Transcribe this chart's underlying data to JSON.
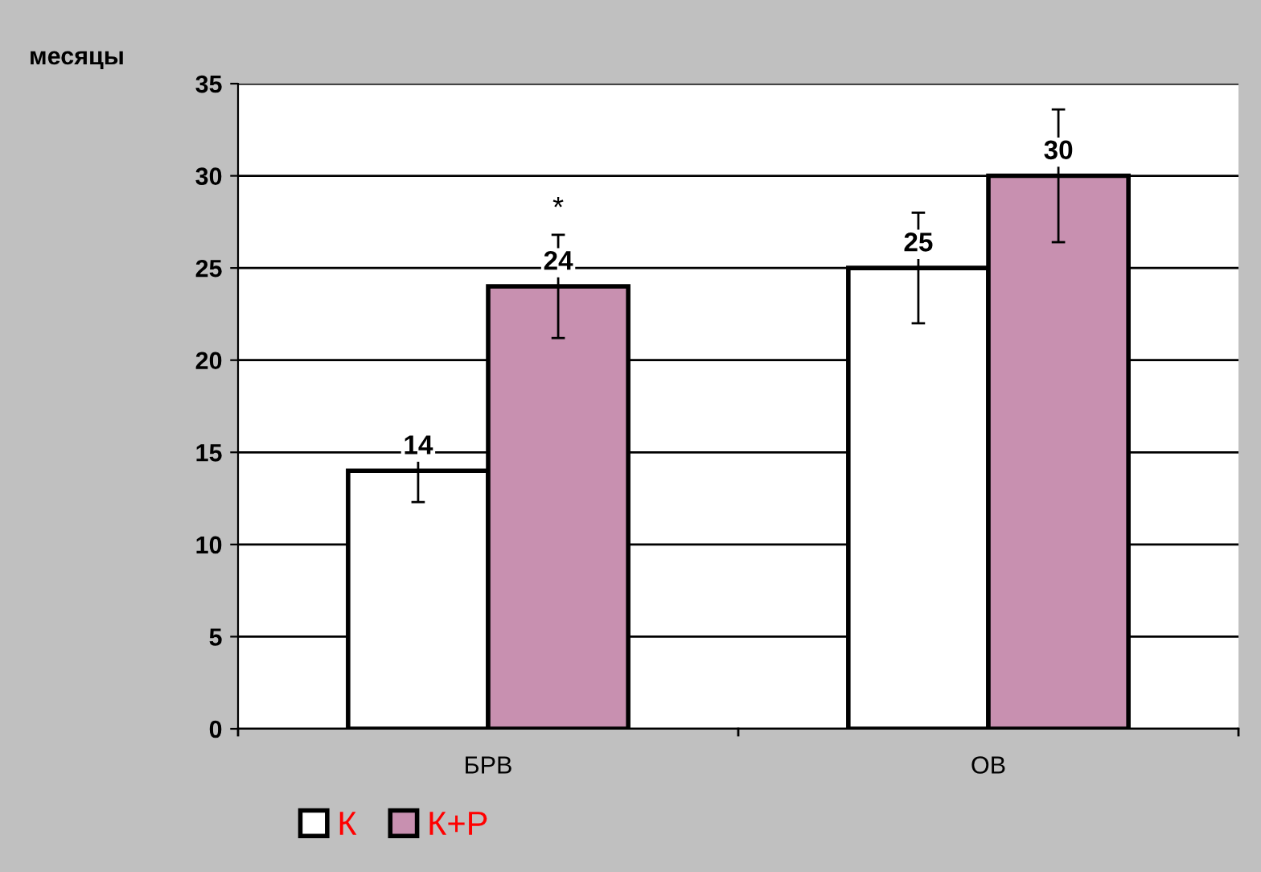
{
  "chart_data": {
    "type": "bar",
    "ylabel": "месяцы",
    "categories": [
      "БРВ",
      "ОВ"
    ],
    "series": [
      {
        "name": "К",
        "color": "#ffffff",
        "values": [
          14,
          25
        ],
        "errors": [
          1.7,
          3
        ]
      },
      {
        "name": "К+Р",
        "color": "#c890b0",
        "values": [
          24,
          30
        ],
        "errors": [
          2.8,
          3.6
        ]
      }
    ],
    "annotations": [
      "*"
    ],
    "ylim": [
      0,
      35
    ],
    "yticks": [
      0,
      5,
      10,
      15,
      20,
      25,
      30,
      35
    ],
    "grid": "y",
    "legend": "bottom left",
    "data_labels": true
  }
}
